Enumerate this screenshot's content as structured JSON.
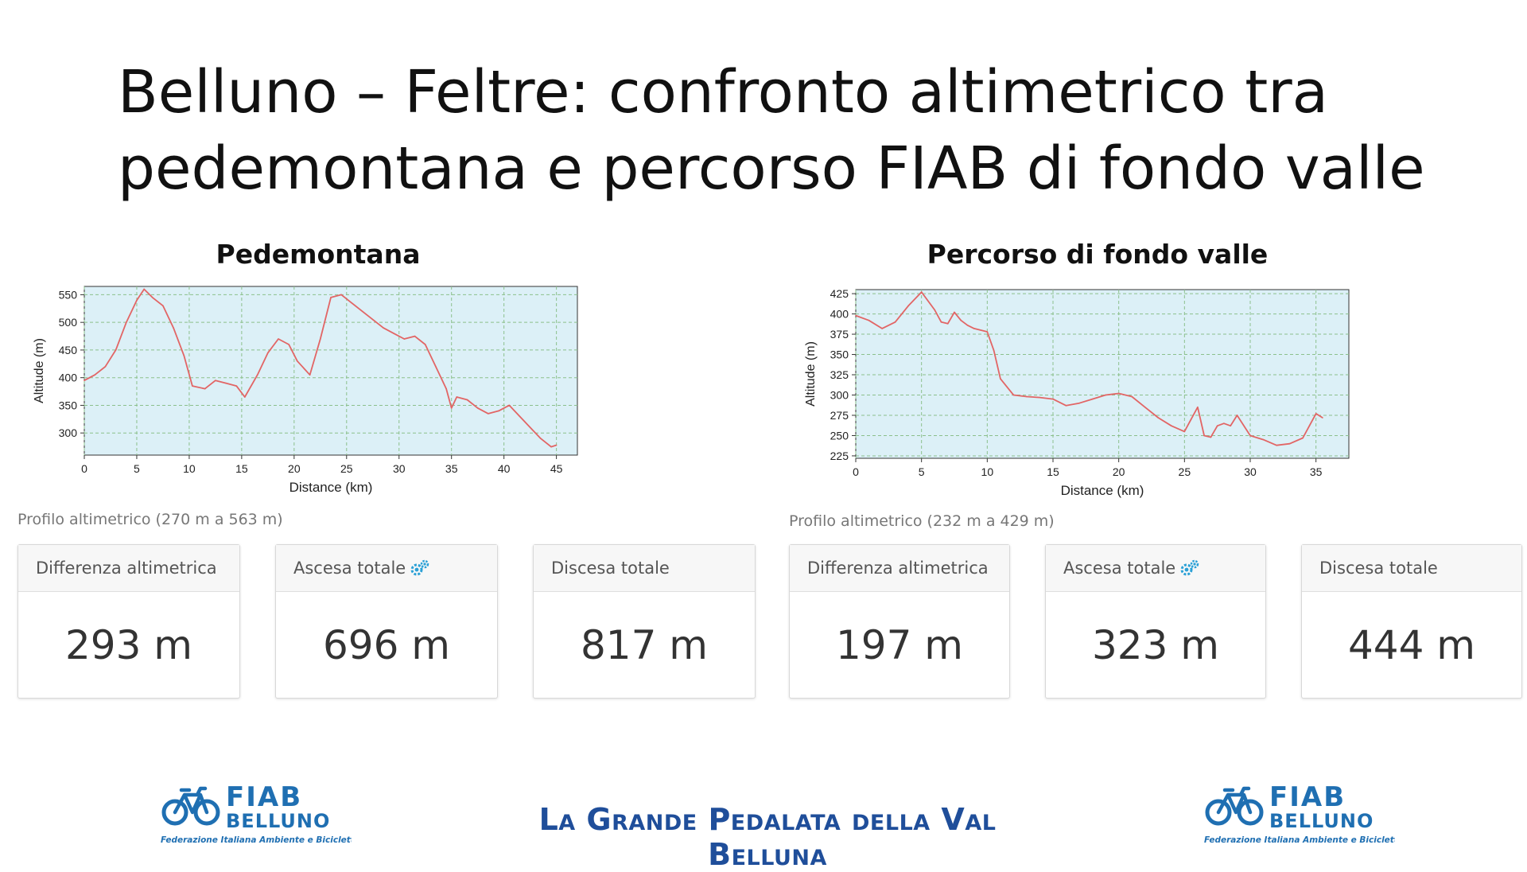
{
  "slide": {
    "title_line1": "Belluno – Feltre: confronto altimetrico tra",
    "title_line2": "pedemontana e percorso FIAB di fondo valle",
    "footer": "La Grande Pedalata della Val Belluna"
  },
  "logo": {
    "name": "FIAB",
    "city": "BELLUNO",
    "tagline": "Federazione Italiana Ambiente e Bicicletta",
    "color": "#1f6fb2"
  },
  "colors": {
    "plot_bg": "#dcf0f7",
    "line": "#e26565",
    "grid": "#8cc08c",
    "icon": "#2aa0d6"
  },
  "left": {
    "heading": "Pedemontana",
    "caption": "Profilo altimetrico (270 m a 563 m)",
    "stats": [
      {
        "label": "Differenza altimetrica",
        "value": "293 m",
        "icon": ""
      },
      {
        "label": "Ascesa totale",
        "value": "696 m",
        "icon": "gears-icon"
      },
      {
        "label": "Discesa totale",
        "value": "817 m",
        "icon": ""
      }
    ]
  },
  "right": {
    "heading": "Percorso di fondo valle",
    "caption": "Profilo altimetrico (232 m a 429 m)",
    "stats": [
      {
        "label": "Differenza altimetrica",
        "value": "197 m",
        "icon": ""
      },
      {
        "label": "Ascesa totale",
        "value": "323 m",
        "icon": "gears-icon"
      },
      {
        "label": "Discesa totale",
        "value": "444 m",
        "icon": ""
      }
    ]
  },
  "chart_data": [
    {
      "type": "line",
      "xlabel": "Distance (km)",
      "ylabel": "Altitude (m)",
      "xlim": [
        0,
        47
      ],
      "ylim": [
        260,
        565
      ],
      "xticks": [
        0,
        5,
        10,
        15,
        20,
        25,
        30,
        35,
        40,
        45
      ],
      "yticks": [
        300,
        350,
        400,
        450,
        500,
        550
      ],
      "grid": true,
      "series": [
        {
          "x": [
            0,
            1,
            2,
            3,
            4,
            5,
            5.7,
            6.5,
            7.5,
            8.5,
            9.5,
            10.3,
            11.5,
            12.5,
            13.5,
            14.5,
            15.3,
            16.5,
            17.5,
            18.5,
            19.5,
            20.3,
            21.5,
            22.5,
            23.5,
            24.5,
            25.5,
            26.5,
            27.5,
            28.5,
            29.5,
            30.5,
            31.5,
            32.5,
            33.5,
            34.5,
            35,
            35.5,
            36.5,
            37.5,
            38.5,
            39.5,
            40.5,
            41.5,
            42.5,
            43.5,
            44.5,
            45
          ],
          "y": [
            395,
            405,
            420,
            450,
            500,
            540,
            560,
            545,
            530,
            490,
            440,
            385,
            380,
            395,
            390,
            385,
            365,
            405,
            445,
            470,
            460,
            430,
            405,
            470,
            545,
            550,
            535,
            520,
            505,
            490,
            480,
            470,
            475,
            460,
            420,
            380,
            345,
            365,
            360,
            345,
            335,
            340,
            350,
            330,
            310,
            290,
            275,
            278
          ]
        }
      ]
    },
    {
      "type": "line",
      "xlabel": "Distance (km)",
      "ylabel": "Altitude (m)",
      "xlim": [
        0,
        37.5
      ],
      "ylim": [
        222,
        430
      ],
      "xticks": [
        0,
        5,
        10,
        15,
        20,
        25,
        30,
        35
      ],
      "yticks": [
        225,
        250,
        275,
        300,
        325,
        350,
        375,
        400,
        425
      ],
      "grid": true,
      "series": [
        {
          "x": [
            0,
            1,
            2,
            3,
            4,
            5,
            6,
            6.5,
            7,
            7.5,
            8,
            8.5,
            9,
            10,
            10.5,
            11,
            12,
            13,
            14,
            15,
            16,
            17,
            18,
            19,
            20,
            21,
            22,
            23,
            24,
            25,
            25.5,
            26,
            26.5,
            27,
            27.5,
            28,
            28.5,
            29,
            30,
            31,
            32,
            33,
            34,
            34.5,
            35,
            35.5
          ],
          "y": [
            398,
            392,
            382,
            390,
            410,
            427,
            405,
            390,
            388,
            402,
            392,
            386,
            382,
            378,
            355,
            320,
            300,
            298,
            297,
            295,
            287,
            290,
            295,
            300,
            302,
            298,
            285,
            272,
            262,
            255,
            270,
            285,
            250,
            248,
            262,
            265,
            262,
            275,
            250,
            245,
            238,
            240,
            247,
            262,
            277,
            272
          ]
        }
      ]
    }
  ]
}
